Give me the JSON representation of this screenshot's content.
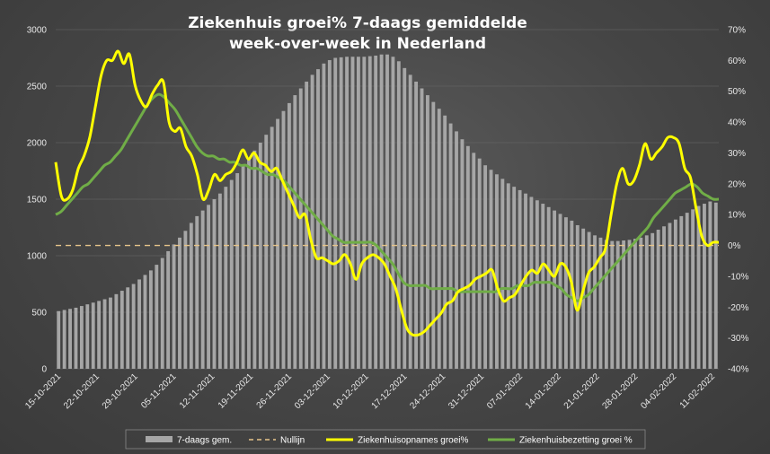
{
  "chart_data": {
    "type": "bar+line",
    "title_line1": "Ziekenhuis groei% 7-daags gemiddelde",
    "title_line2": "week-over-week in Nederland",
    "left_axis": {
      "ylim": [
        0,
        3000
      ],
      "ticks": [
        "0",
        "500",
        "1000",
        "1500",
        "2000",
        "2500",
        "3000"
      ]
    },
    "right_axis": {
      "ylim": [
        -40,
        70
      ],
      "ticks": [
        "-40%",
        "-30%",
        "-20%",
        "-10%",
        "0%",
        "10%",
        "20%",
        "30%",
        "40%",
        "50%",
        "60%",
        "70%"
      ]
    },
    "x_tick_labels": [
      "15-10-2021",
      "22-10-2021",
      "29-10-2021",
      "05-11-2021",
      "12-11-2021",
      "19-11-2021",
      "26-11-2021",
      "03-12-2021",
      "10-12-2021",
      "17-12-2021",
      "24-12-2021",
      "31-12-2021",
      "07-01-2022",
      "14-01-2022",
      "21-01-2022",
      "28-01-2022",
      "04-02-2022",
      "11-02-2022"
    ],
    "series": [
      {
        "name": "7-daags gem.",
        "color": "#a6a6a6",
        "axis": "left",
        "values": [
          510,
          520,
          530,
          540,
          555,
          570,
          585,
          600,
          615,
          630,
          660,
          690,
          720,
          750,
          790,
          830,
          870,
          920,
          980,
          1040,
          1100,
          1160,
          1220,
          1290,
          1350,
          1400,
          1450,
          1500,
          1550,
          1610,
          1670,
          1730,
          1790,
          1860,
          1930,
          2000,
          2070,
          2140,
          2210,
          2280,
          2350,
          2420,
          2480,
          2540,
          2600,
          2650,
          2700,
          2730,
          2750,
          2755,
          2760,
          2760,
          2760,
          2760,
          2765,
          2770,
          2780,
          2780,
          2760,
          2720,
          2660,
          2600,
          2540,
          2480,
          2420,
          2360,
          2300,
          2240,
          2170,
          2100,
          2030,
          1970,
          1910,
          1860,
          1800,
          1760,
          1720,
          1680,
          1640,
          1610,
          1580,
          1550,
          1520,
          1490,
          1460,
          1430,
          1400,
          1370,
          1340,
          1310,
          1270,
          1240,
          1210,
          1180,
          1160,
          1140,
          1130,
          1130,
          1135,
          1140,
          1150,
          1160,
          1180,
          1200,
          1230,
          1260,
          1290,
          1320,
          1350,
          1380,
          1410,
          1440,
          1460,
          1480,
          1470
        ]
      },
      {
        "name": "Nullijn",
        "color": "#e8c58a",
        "axis": "right",
        "values": [
          0
        ]
      },
      {
        "name": "Ziekenhuisopnames groei%",
        "color": "#ffff00",
        "axis": "right",
        "values": [
          27,
          16,
          15,
          18,
          25,
          29,
          35,
          45,
          55,
          60,
          60,
          63,
          59,
          62,
          52,
          47,
          45,
          49,
          52,
          53,
          40,
          37,
          38,
          32,
          29,
          23,
          15,
          18,
          23,
          21,
          23,
          24,
          27,
          31,
          28,
          30,
          27,
          26,
          24,
          25,
          21,
          17,
          13,
          9,
          10,
          2,
          -4,
          -4,
          -5,
          -6,
          -5,
          -3,
          -6,
          -11,
          -6,
          -4,
          -3,
          -4,
          -6,
          -10,
          -14,
          -21,
          -27,
          -29,
          -29,
          -28,
          -26,
          -24,
          -22,
          -19,
          -18,
          -15,
          -14,
          -13,
          -11,
          -10,
          -9,
          -8,
          -14,
          -18,
          -17,
          -16,
          -13,
          -10,
          -8,
          -9,
          -6,
          -8,
          -10,
          -6,
          -7,
          -12,
          -21,
          -15,
          -9,
          -7,
          -4,
          -1,
          10,
          20,
          25,
          20,
          21,
          26,
          33,
          28,
          30,
          32,
          35,
          35,
          33,
          25,
          22,
          12,
          3,
          0,
          1,
          1
        ]
      },
      {
        "name": "Ziekenhuisbezetting groei %",
        "color": "#70ad47",
        "axis": "right",
        "values": [
          10,
          11,
          13,
          15,
          17,
          19,
          20,
          22,
          24,
          26,
          27,
          29,
          31,
          34,
          37,
          40,
          43,
          46,
          48,
          49,
          48,
          46,
          44,
          41,
          38,
          35,
          32,
          30,
          29,
          29,
          28,
          28,
          27,
          27,
          26,
          26,
          25,
          25,
          24,
          23,
          23,
          22,
          21,
          19,
          17,
          15,
          13,
          11,
          9,
          7,
          5,
          3,
          2,
          1,
          1,
          1,
          1,
          1,
          1,
          0,
          -2,
          -4,
          -6,
          -9,
          -12,
          -13,
          -13,
          -13,
          -13,
          -14,
          -14,
          -14,
          -14,
          -14,
          -15,
          -15,
          -15,
          -15,
          -15,
          -15,
          -15,
          -15,
          -14,
          -14,
          -14,
          -13,
          -13,
          -13,
          -12,
          -12,
          -12,
          -12,
          -13,
          -14,
          -16,
          -17,
          -18,
          -17,
          -16,
          -14,
          -12,
          -10,
          -8,
          -6,
          -4,
          -2,
          0,
          2,
          4,
          6,
          9,
          11,
          13,
          15,
          17,
          18,
          19,
          20,
          19,
          17,
          16,
          15,
          15
        ]
      }
    ],
    "legend_position": "bottom"
  }
}
